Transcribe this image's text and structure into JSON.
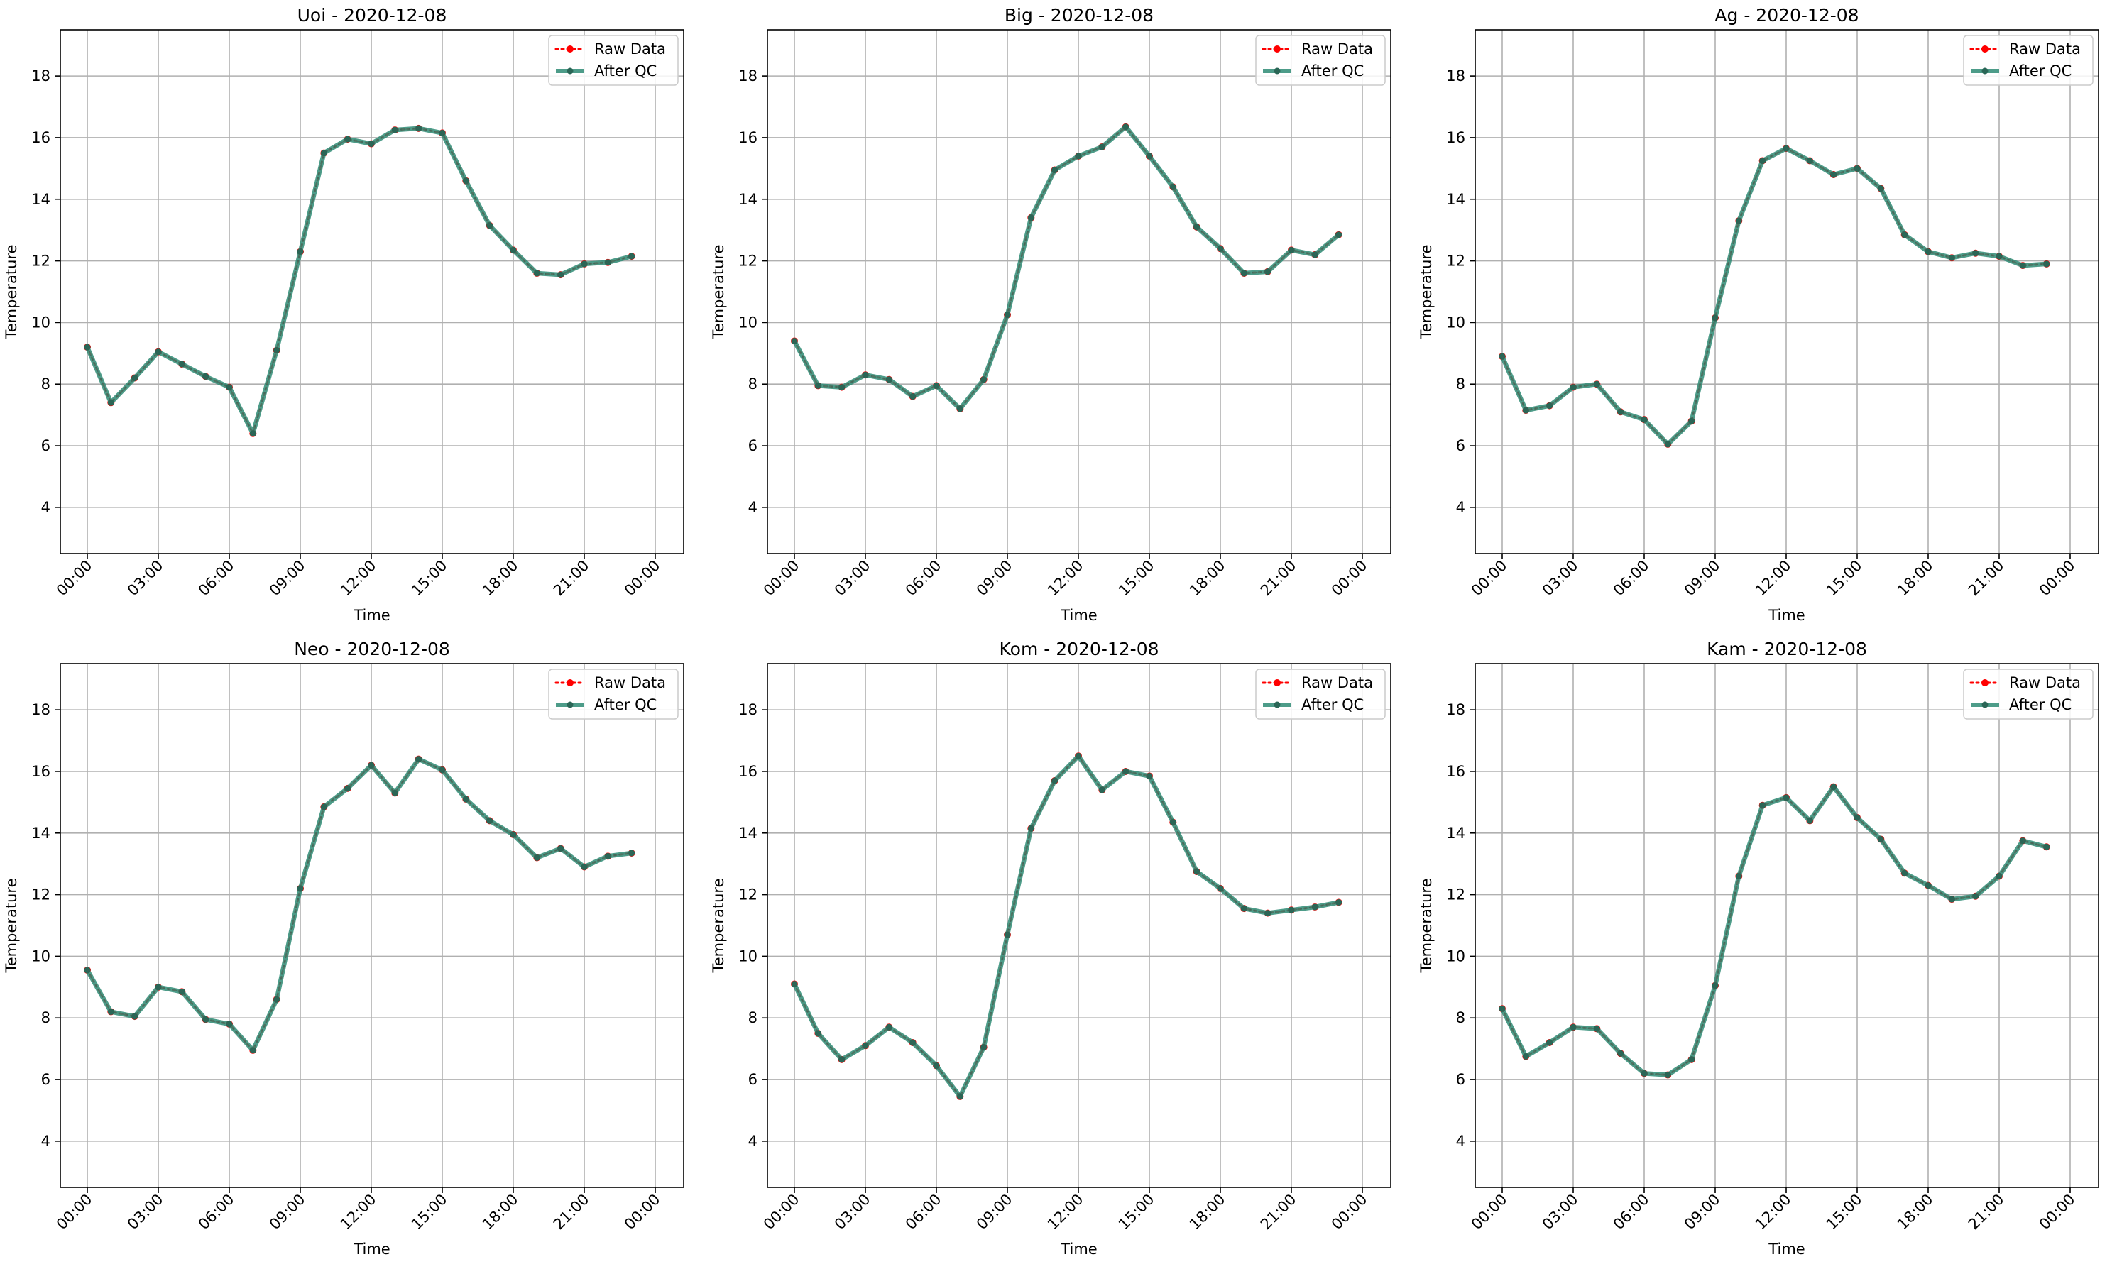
{
  "chart_data": [
    {
      "type": "line",
      "title": "Uoi - 2020-12-08",
      "xlabel": "Time",
      "ylabel": "Temperature",
      "x_ticks": [
        "00:00",
        "03:00",
        "06:00",
        "09:00",
        "12:00",
        "15:00",
        "18:00",
        "21:00",
        "00:00"
      ],
      "y_ticks": [
        4,
        6,
        8,
        10,
        12,
        14,
        16,
        18
      ],
      "ylim": [
        2.5,
        19.5
      ],
      "grid": true,
      "legend": "top-right",
      "x": [
        "00:00",
        "01:00",
        "02:00",
        "03:00",
        "04:00",
        "05:00",
        "06:00",
        "07:00",
        "08:00",
        "09:00",
        "10:00",
        "11:00",
        "12:00",
        "13:00",
        "14:00",
        "15:00",
        "16:00",
        "17:00",
        "18:00",
        "19:00",
        "20:00",
        "21:00",
        "22:00",
        "23:00"
      ],
      "series": [
        {
          "name": "Raw Data",
          "color": "#ff0000",
          "style": "dotted",
          "values": [
            9.2,
            7.4,
            8.2,
            9.05,
            8.65,
            8.25,
            7.9,
            6.4,
            9.1,
            12.3,
            15.5,
            15.95,
            15.8,
            16.25,
            16.3,
            16.15,
            14.6,
            13.15,
            12.35,
            11.6,
            11.55,
            11.9,
            11.95,
            12.15
          ]
        },
        {
          "name": "After QC",
          "color": "#2e8b74",
          "style": "solid",
          "values": [
            9.2,
            7.4,
            8.2,
            9.05,
            8.65,
            8.25,
            7.9,
            6.4,
            9.1,
            12.3,
            15.5,
            15.95,
            15.8,
            16.25,
            16.3,
            16.15,
            14.6,
            13.15,
            12.35,
            11.6,
            11.55,
            11.9,
            11.95,
            12.15
          ]
        }
      ]
    },
    {
      "type": "line",
      "title": "Big - 2020-12-08",
      "xlabel": "Time",
      "ylabel": "Temperature",
      "x_ticks": [
        "00:00",
        "03:00",
        "06:00",
        "09:00",
        "12:00",
        "15:00",
        "18:00",
        "21:00",
        "00:00"
      ],
      "y_ticks": [
        4,
        6,
        8,
        10,
        12,
        14,
        16,
        18
      ],
      "ylim": [
        2.5,
        19.5
      ],
      "grid": true,
      "legend": "top-right",
      "x": [
        "00:00",
        "01:00",
        "02:00",
        "03:00",
        "04:00",
        "05:00",
        "06:00",
        "07:00",
        "08:00",
        "09:00",
        "10:00",
        "11:00",
        "12:00",
        "13:00",
        "14:00",
        "15:00",
        "16:00",
        "17:00",
        "18:00",
        "19:00",
        "20:00",
        "21:00",
        "22:00",
        "23:00"
      ],
      "series": [
        {
          "name": "Raw Data",
          "color": "#ff0000",
          "style": "dotted",
          "values": [
            9.4,
            7.95,
            7.9,
            8.3,
            8.15,
            7.6,
            7.95,
            7.2,
            8.15,
            10.25,
            13.4,
            14.95,
            15.4,
            15.7,
            16.35,
            15.4,
            14.4,
            13.1,
            12.4,
            11.6,
            11.65,
            12.35,
            12.2,
            12.85
          ]
        },
        {
          "name": "After QC",
          "color": "#2e8b74",
          "style": "solid",
          "values": [
            9.4,
            7.95,
            7.9,
            8.3,
            8.15,
            7.6,
            7.95,
            7.2,
            8.15,
            10.25,
            13.4,
            14.95,
            15.4,
            15.7,
            16.35,
            15.4,
            14.4,
            13.1,
            12.4,
            11.6,
            11.65,
            12.35,
            12.2,
            12.85
          ]
        }
      ]
    },
    {
      "type": "line",
      "title": "Ag - 2020-12-08",
      "xlabel": "Time",
      "ylabel": "Temperature",
      "x_ticks": [
        "00:00",
        "03:00",
        "06:00",
        "09:00",
        "12:00",
        "15:00",
        "18:00",
        "21:00",
        "00:00"
      ],
      "y_ticks": [
        4,
        6,
        8,
        10,
        12,
        14,
        16,
        18
      ],
      "ylim": [
        2.5,
        19.5
      ],
      "grid": true,
      "legend": "top-right",
      "x": [
        "00:00",
        "01:00",
        "02:00",
        "03:00",
        "04:00",
        "05:00",
        "06:00",
        "07:00",
        "08:00",
        "09:00",
        "10:00",
        "11:00",
        "12:00",
        "13:00",
        "14:00",
        "15:00",
        "16:00",
        "17:00",
        "18:00",
        "19:00",
        "20:00",
        "21:00",
        "22:00",
        "23:00"
      ],
      "series": [
        {
          "name": "Raw Data",
          "color": "#ff0000",
          "style": "dotted",
          "values": [
            8.9,
            7.15,
            7.3,
            7.9,
            8.0,
            7.1,
            6.85,
            6.05,
            6.8,
            10.15,
            13.3,
            15.25,
            15.65,
            15.25,
            14.8,
            15.0,
            14.35,
            12.85,
            12.3,
            12.1,
            12.25,
            12.15,
            11.85,
            11.9
          ]
        },
        {
          "name": "After QC",
          "color": "#2e8b74",
          "style": "solid",
          "values": [
            8.9,
            7.15,
            7.3,
            7.9,
            8.0,
            7.1,
            6.85,
            6.05,
            6.8,
            10.15,
            13.3,
            15.25,
            15.65,
            15.25,
            14.8,
            15.0,
            14.35,
            12.85,
            12.3,
            12.1,
            12.25,
            12.15,
            11.85,
            11.9
          ]
        }
      ]
    },
    {
      "type": "line",
      "title": "Neo - 2020-12-08",
      "xlabel": "Time",
      "ylabel": "Temperature",
      "x_ticks": [
        "00:00",
        "03:00",
        "06:00",
        "09:00",
        "12:00",
        "15:00",
        "18:00",
        "21:00",
        "00:00"
      ],
      "y_ticks": [
        4,
        6,
        8,
        10,
        12,
        14,
        16,
        18
      ],
      "ylim": [
        2.5,
        19.5
      ],
      "grid": true,
      "legend": "top-right",
      "x": [
        "00:00",
        "01:00",
        "02:00",
        "03:00",
        "04:00",
        "05:00",
        "06:00",
        "07:00",
        "08:00",
        "09:00",
        "10:00",
        "11:00",
        "12:00",
        "13:00",
        "14:00",
        "15:00",
        "16:00",
        "17:00",
        "18:00",
        "19:00",
        "20:00",
        "21:00",
        "22:00",
        "23:00"
      ],
      "series": [
        {
          "name": "Raw Data",
          "color": "#ff0000",
          "style": "dotted",
          "values": [
            9.55,
            8.2,
            8.05,
            9.0,
            8.85,
            7.95,
            7.8,
            6.95,
            8.6,
            12.2,
            14.85,
            15.45,
            16.2,
            15.3,
            16.4,
            16.05,
            15.1,
            14.4,
            13.95,
            13.2,
            13.5,
            12.9,
            13.25,
            13.35
          ]
        },
        {
          "name": "After QC",
          "color": "#2e8b74",
          "style": "solid",
          "values": [
            9.55,
            8.2,
            8.05,
            9.0,
            8.85,
            7.95,
            7.8,
            6.95,
            8.6,
            12.2,
            14.85,
            15.45,
            16.2,
            15.3,
            16.4,
            16.05,
            15.1,
            14.4,
            13.95,
            13.2,
            13.5,
            12.9,
            13.25,
            13.35
          ]
        }
      ]
    },
    {
      "type": "line",
      "title": "Kom - 2020-12-08",
      "xlabel": "Time",
      "ylabel": "Temperature",
      "x_ticks": [
        "00:00",
        "03:00",
        "06:00",
        "09:00",
        "12:00",
        "15:00",
        "18:00",
        "21:00",
        "00:00"
      ],
      "y_ticks": [
        4,
        6,
        8,
        10,
        12,
        14,
        16,
        18
      ],
      "ylim": [
        2.5,
        19.5
      ],
      "grid": true,
      "legend": "top-right",
      "x": [
        "00:00",
        "01:00",
        "02:00",
        "03:00",
        "04:00",
        "05:00",
        "06:00",
        "07:00",
        "08:00",
        "09:00",
        "10:00",
        "11:00",
        "12:00",
        "13:00",
        "14:00",
        "15:00",
        "16:00",
        "17:00",
        "18:00",
        "19:00",
        "20:00",
        "21:00",
        "22:00",
        "23:00"
      ],
      "series": [
        {
          "name": "Raw Data",
          "color": "#ff0000",
          "style": "dotted",
          "values": [
            9.1,
            7.5,
            6.65,
            7.1,
            7.7,
            7.2,
            6.45,
            5.45,
            7.05,
            10.7,
            14.15,
            15.7,
            16.5,
            15.4,
            16.0,
            15.85,
            14.35,
            12.75,
            12.2,
            11.55,
            11.4,
            11.5,
            11.6,
            11.75
          ]
        },
        {
          "name": "After QC",
          "color": "#2e8b74",
          "style": "solid",
          "values": [
            9.1,
            7.5,
            6.65,
            7.1,
            7.7,
            7.2,
            6.45,
            5.45,
            7.05,
            10.7,
            14.15,
            15.7,
            16.5,
            15.4,
            16.0,
            15.85,
            14.35,
            12.75,
            12.2,
            11.55,
            11.4,
            11.5,
            11.6,
            11.75
          ]
        }
      ]
    },
    {
      "type": "line",
      "title": "Kam - 2020-12-08",
      "xlabel": "Time",
      "ylabel": "Temperature",
      "x_ticks": [
        "00:00",
        "03:00",
        "06:00",
        "09:00",
        "12:00",
        "15:00",
        "18:00",
        "21:00",
        "00:00"
      ],
      "y_ticks": [
        4,
        6,
        8,
        10,
        12,
        14,
        16,
        18
      ],
      "ylim": [
        2.5,
        19.5
      ],
      "grid": true,
      "legend": "top-right",
      "x": [
        "00:00",
        "01:00",
        "02:00",
        "03:00",
        "04:00",
        "05:00",
        "06:00",
        "07:00",
        "08:00",
        "09:00",
        "10:00",
        "11:00",
        "12:00",
        "13:00",
        "14:00",
        "15:00",
        "16:00",
        "17:00",
        "18:00",
        "19:00",
        "20:00",
        "21:00",
        "22:00",
        "23:00"
      ],
      "series": [
        {
          "name": "Raw Data",
          "color": "#ff0000",
          "style": "dotted",
          "values": [
            8.3,
            6.75,
            7.2,
            7.7,
            7.65,
            6.85,
            6.2,
            6.15,
            6.65,
            9.05,
            12.6,
            14.9,
            15.15,
            14.4,
            15.5,
            14.5,
            13.8,
            12.7,
            12.3,
            11.85,
            11.95,
            12.6,
            13.75,
            13.55
          ]
        },
        {
          "name": "After QC",
          "color": "#2e8b74",
          "style": "solid",
          "values": [
            8.3,
            6.75,
            7.2,
            7.7,
            7.65,
            6.85,
            6.2,
            6.15,
            6.65,
            9.05,
            12.6,
            14.9,
            15.15,
            14.4,
            15.5,
            14.5,
            13.8,
            12.7,
            12.3,
            11.85,
            11.95,
            12.6,
            13.75,
            13.55
          ]
        }
      ]
    }
  ]
}
